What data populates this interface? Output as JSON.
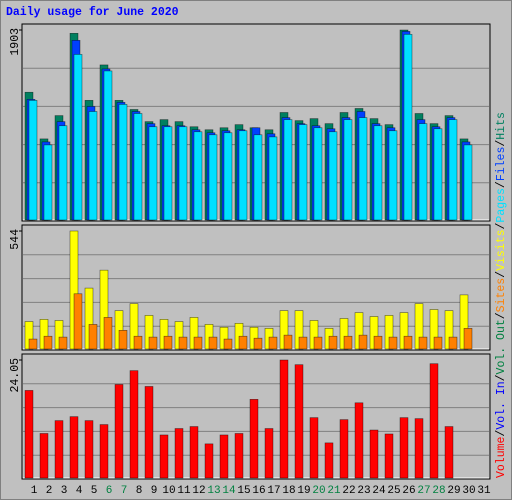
{
  "chart_data": {
    "type": "bar",
    "title": "Daily usage for June 2020",
    "categories": [
      1,
      2,
      3,
      4,
      5,
      6,
      7,
      8,
      9,
      10,
      11,
      12,
      13,
      14,
      15,
      16,
      17,
      18,
      19,
      20,
      21,
      22,
      23,
      24,
      25,
      26,
      27,
      28,
      29,
      30,
      31
    ],
    "category_colors": [
      "#000000",
      "#000000",
      "#000000",
      "#000000",
      "#000000",
      "#008040",
      "#008040",
      "#000000",
      "#000000",
      "#000000",
      "#000000",
      "#000000",
      "#008040",
      "#008040",
      "#000000",
      "#000000",
      "#000000",
      "#000000",
      "#000000",
      "#008040",
      "#008040",
      "#000000",
      "#000000",
      "#000000",
      "#000000",
      "#000000",
      "#008040",
      "#008040",
      "#000000",
      "#000000",
      "#000000"
    ],
    "legend_separator": "/",
    "grid_divisions": 5,
    "panels": [
      {
        "ylim": [
          0,
          1903
        ],
        "yticks": [
          1903
        ],
        "series": [
          {
            "name": "Pages",
            "color": "#00e0ff",
            "values": [
              1202,
              758,
              949,
              1660,
              1091,
              1495,
              1162,
              1071,
              939,
              939,
              939,
              889,
              859,
              879,
              899,
              859,
              838,
              1010,
              960,
              929,
              889,
              1010,
              1030,
              949,
              899,
              1860,
              970,
              919,
              1010,
              758,
              null
            ]
          },
          {
            "name": "Files",
            "color": "#0040ff",
            "values": [
              1212,
              788,
              990,
              1800,
              1141,
              1515,
              1182,
              1091,
              970,
              949,
              949,
              909,
              879,
              899,
              909,
              929,
              869,
              1030,
              970,
              949,
              919,
              1030,
              1091,
              970,
              929,
              1889,
              1010,
              939,
              1030,
              788,
              null
            ]
          },
          {
            "name": "Hits",
            "color": "#008060",
            "values": [
              1283,
              818,
              1050,
              1870,
              1202,
              1555,
              1202,
              1111,
              990,
              1010,
              990,
              939,
              909,
              929,
              960,
              929,
              909,
              1081,
              1000,
              1020,
              970,
              1081,
              1121,
              1020,
              960,
              1903,
              1071,
              970,
              1050,
              818,
              null
            ]
          }
        ]
      },
      {
        "ylim": [
          0,
          544
        ],
        "yticks": [
          544
        ],
        "series": [
          {
            "name": "Sites",
            "color": "#ff8000",
            "values": [
              50,
              63,
              59,
              257,
              117,
              149,
              90,
              63,
              59,
              63,
              59,
              59,
              59,
              50,
              63,
              54,
              59,
              68,
              59,
              59,
              63,
              63,
              68,
              63,
              59,
              63,
              59,
              59,
              59,
              99,
              null
            ]
          },
          {
            "name": "Visits",
            "color": "#ffff00",
            "values": [
              130,
              140,
              135,
              544,
              283,
              365,
              180,
              212,
              158,
              140,
              130,
              149,
              117,
              104,
              122,
              104,
              99,
              180,
              180,
              135,
              99,
              144,
              171,
              153,
              158,
              171,
              212,
              185,
              180,
              252,
              null
            ]
          }
        ]
      },
      {
        "ylim": [
          0,
          24.05
        ],
        "yticks": [
          24.05
        ],
        "series": [
          {
            "name": "Volume",
            "color": "#ff0000",
            "values": [
              17.9,
              9.2,
              11.8,
              12.6,
              11.8,
              11.0,
              19.1,
              21.9,
              18.7,
              8.9,
              10.2,
              10.6,
              7.1,
              8.9,
              9.2,
              16.1,
              10.2,
              24.05,
              23.1,
              12.4,
              7.3,
              12.0,
              15.4,
              9.9,
              9.1,
              12.4,
              12.2,
              23.3,
              10.6,
              null,
              null
            ]
          },
          {
            "name": "Vol. In",
            "color": "#0000ff",
            "values": [
              null,
              null,
              null,
              null,
              null,
              null,
              null,
              null,
              null,
              null,
              null,
              null,
              null,
              null,
              null,
              null,
              null,
              null,
              null,
              null,
              null,
              null,
              null,
              null,
              null,
              null,
              null,
              null,
              null,
              null,
              null
            ]
          },
          {
            "name": "Vol. Out",
            "color": "#008040",
            "values": [
              null,
              null,
              null,
              null,
              null,
              null,
              null,
              null,
              null,
              null,
              null,
              null,
              null,
              null,
              null,
              null,
              null,
              null,
              null,
              null,
              null,
              null,
              null,
              null,
              null,
              null,
              null,
              null,
              null,
              null,
              null
            ]
          }
        ]
      }
    ]
  }
}
